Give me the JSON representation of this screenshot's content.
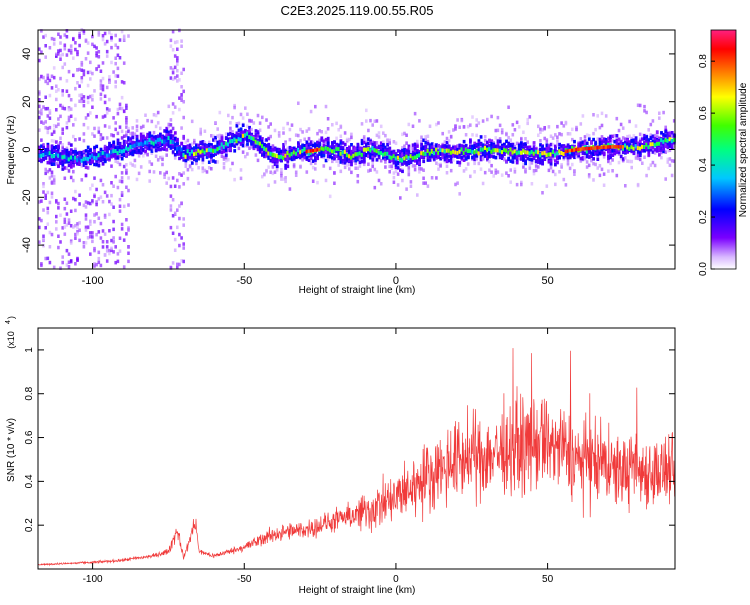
{
  "title": "C2E3.2025.119.00.55.R05",
  "colors": {
    "snr_line": "#f03a3a",
    "axis": "#000000",
    "background": "#ffffff"
  },
  "chart_data": [
    {
      "type": "heatmap",
      "xlabel": "Height of straight line (km)",
      "ylabel": "Frequency (Hz)",
      "xlim": [
        -118,
        92
      ],
      "ylim": [
        -50,
        50
      ],
      "x_ticks": [
        -100,
        -50,
        0,
        50
      ],
      "y_ticks": [
        -40,
        -20,
        0,
        20,
        40
      ],
      "colorbar": {
        "label": "Normalized spectral amplitude",
        "range": [
          0,
          0.92
        ],
        "ticks": [
          0.0,
          0.2,
          0.4,
          0.6,
          0.8
        ],
        "tick_labels": [
          "0.0",
          "0.2",
          "0.4",
          "0.6",
          "0.8"
        ],
        "colormap": "rainbow (violet → blue → cyan → green → yellow → orange → red → magenta)"
      },
      "ridge_frequency": {
        "x": [
          -115,
          -105,
          -95,
          -85,
          -75,
          -70,
          -60,
          -50,
          -45,
          -40,
          -35,
          -30,
          -25,
          -20,
          -15,
          -10,
          -5,
          0,
          5,
          10,
          20,
          30,
          40,
          50,
          60,
          70,
          80,
          90
        ],
        "y": [
          -2,
          -4,
          -2,
          2,
          4,
          -2,
          0,
          6,
          2,
          -3,
          -2,
          -1,
          0,
          0,
          -3,
          0,
          -1,
          -4,
          -3,
          -1,
          -1,
          0,
          -1,
          -2,
          0,
          1,
          1,
          4
        ]
      }
    },
    {
      "type": "line",
      "xlabel": "Height of straight line (km)",
      "ylabel": "SNR (10 * v/v)",
      "y_scale_label": "(x10",
      "y_scale_exponent": "4",
      "xlim": [
        -118,
        92
      ],
      "ylim": [
        0,
        1.1
      ],
      "x_ticks": [
        -100,
        -50,
        0,
        50
      ],
      "y_ticks": [
        0.2,
        0.4,
        0.6,
        0.8,
        1.0
      ],
      "y_tick_labels": [
        "0.2",
        "0.4",
        "0.6",
        "0.8",
        "1"
      ],
      "series": [
        {
          "x": [
            -118,
            -100,
            -90,
            -80,
            -75,
            -72,
            -70,
            -66,
            -65,
            -60,
            -50,
            -40,
            -30,
            -20,
            -10,
            0,
            10,
            20,
            30,
            40,
            50,
            60,
            70,
            80,
            92
          ],
          "y": [
            0.02,
            0.03,
            0.04,
            0.06,
            0.08,
            0.18,
            0.05,
            0.22,
            0.08,
            0.06,
            0.1,
            0.16,
            0.18,
            0.22,
            0.26,
            0.32,
            0.42,
            0.5,
            0.52,
            0.56,
            0.58,
            0.5,
            0.45,
            0.45,
            0.44
          ]
        }
      ]
    }
  ]
}
